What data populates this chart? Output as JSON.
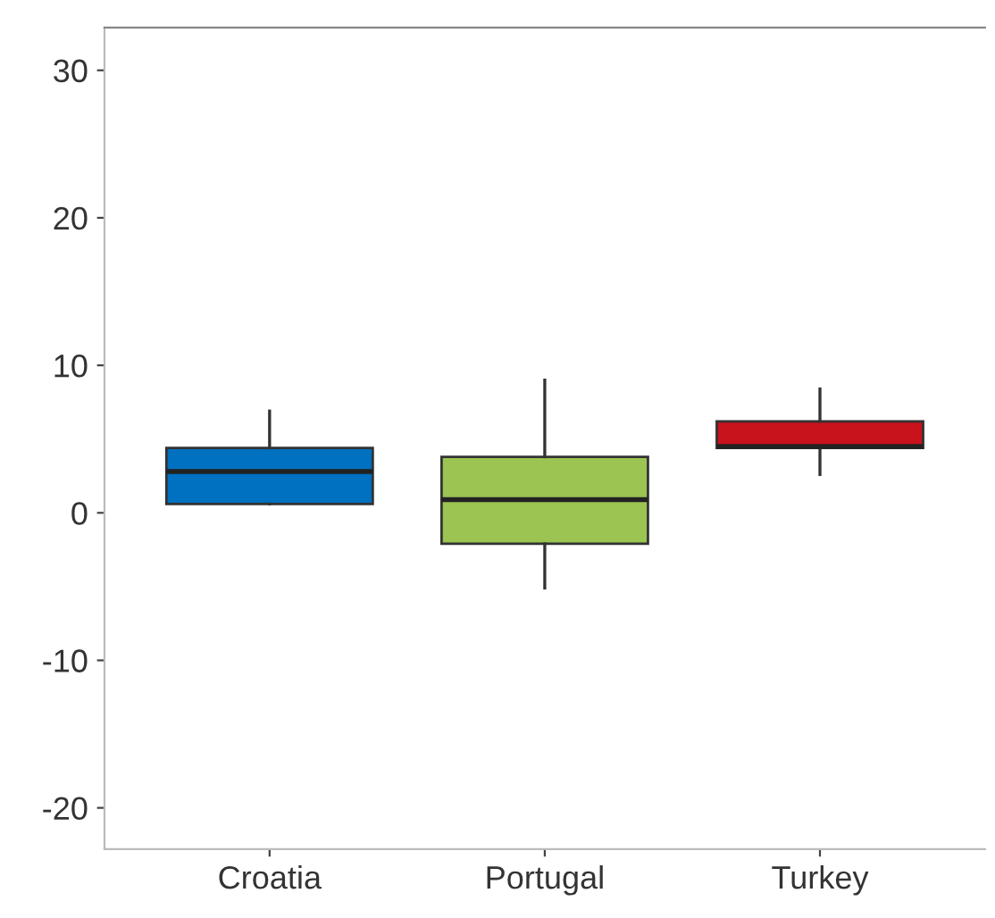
{
  "chart_data": {
    "type": "box",
    "categories": [
      "Croatia",
      "Portugal",
      "Turkey"
    ],
    "colors": [
      "#0070c0",
      "#9bc453",
      "#c8121c"
    ],
    "boxes": [
      {
        "low": 0.6,
        "q1": 0.6,
        "median": 2.8,
        "q3": 4.4,
        "high": 6.9
      },
      {
        "low": -5.1,
        "q1": -2.1,
        "median": 0.9,
        "q3": 3.8,
        "high": 9.0
      },
      {
        "low": 2.6,
        "q1": 4.4,
        "median": 4.5,
        "q3": 6.2,
        "high": 8.4
      }
    ],
    "ylim": [
      -22.8,
      32.9
    ],
    "yticks": [
      -20,
      -10,
      0,
      10,
      20,
      30
    ],
    "grid": false
  }
}
